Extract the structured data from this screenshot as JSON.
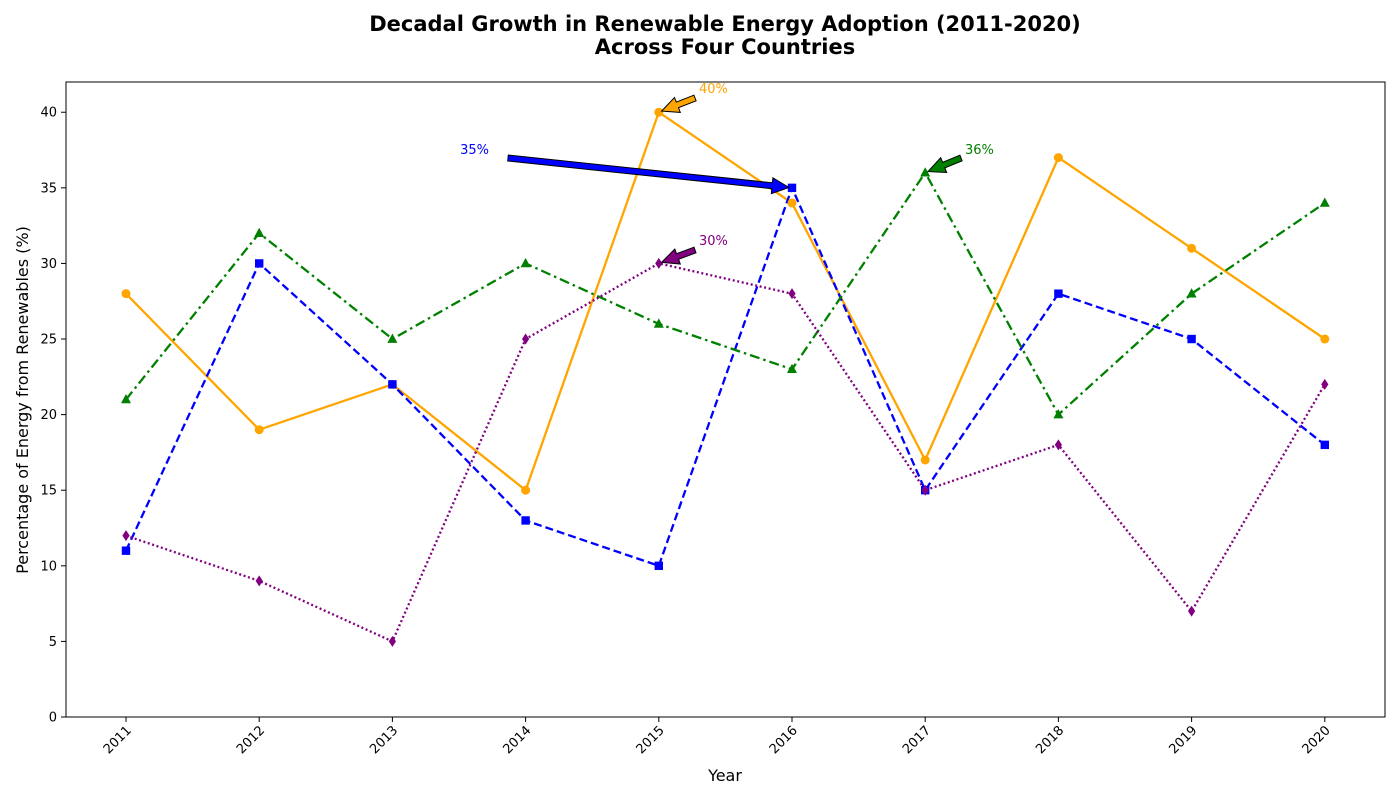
{
  "chart_data": {
    "type": "line",
    "title_line1": "Decadal Growth in Renewable Energy Adoption (2011-2020)",
    "title_line2": "Across Four Countries",
    "xlabel": "Year",
    "ylabel": "Percentage of Energy from Renewables (%)",
    "categories": [
      "2011",
      "2012",
      "2013",
      "2014",
      "2015",
      "2016",
      "2017",
      "2018",
      "2019",
      "2020"
    ],
    "ylim": [
      0,
      42
    ],
    "yticks": [
      0,
      5,
      10,
      15,
      20,
      25,
      30,
      35,
      40
    ],
    "grid": false,
    "series": [
      {
        "values": [
          28,
          19,
          22,
          15,
          40,
          34,
          17,
          37,
          31,
          25
        ],
        "color": "#ffa500",
        "dash": "solid",
        "marker": "circle"
      },
      {
        "values": [
          11,
          30,
          22,
          13,
          10,
          35,
          15,
          28,
          25,
          18
        ],
        "color": "#0000ff",
        "dash": "dashed",
        "marker": "square"
      },
      {
        "values": [
          21,
          32,
          25,
          30,
          26,
          23,
          36,
          20,
          28,
          34
        ],
        "color": "#008000",
        "dash": "dashdot",
        "marker": "triangle"
      },
      {
        "values": [
          12,
          9,
          5,
          25,
          30,
          28,
          15,
          18,
          7,
          22
        ],
        "color": "#800080",
        "dash": "dotted",
        "marker": "diamond"
      }
    ],
    "annotations": [
      {
        "text": "40%",
        "series": 0,
        "point_index": 4,
        "color": "#ffa500"
      },
      {
        "text": "35%",
        "series": 1,
        "point_index": 5,
        "color": "#0000ff"
      },
      {
        "text": "36%",
        "series": 2,
        "point_index": 6,
        "color": "#008000"
      },
      {
        "text": "30%",
        "series": 3,
        "point_index": 4,
        "color": "#800080"
      }
    ]
  }
}
